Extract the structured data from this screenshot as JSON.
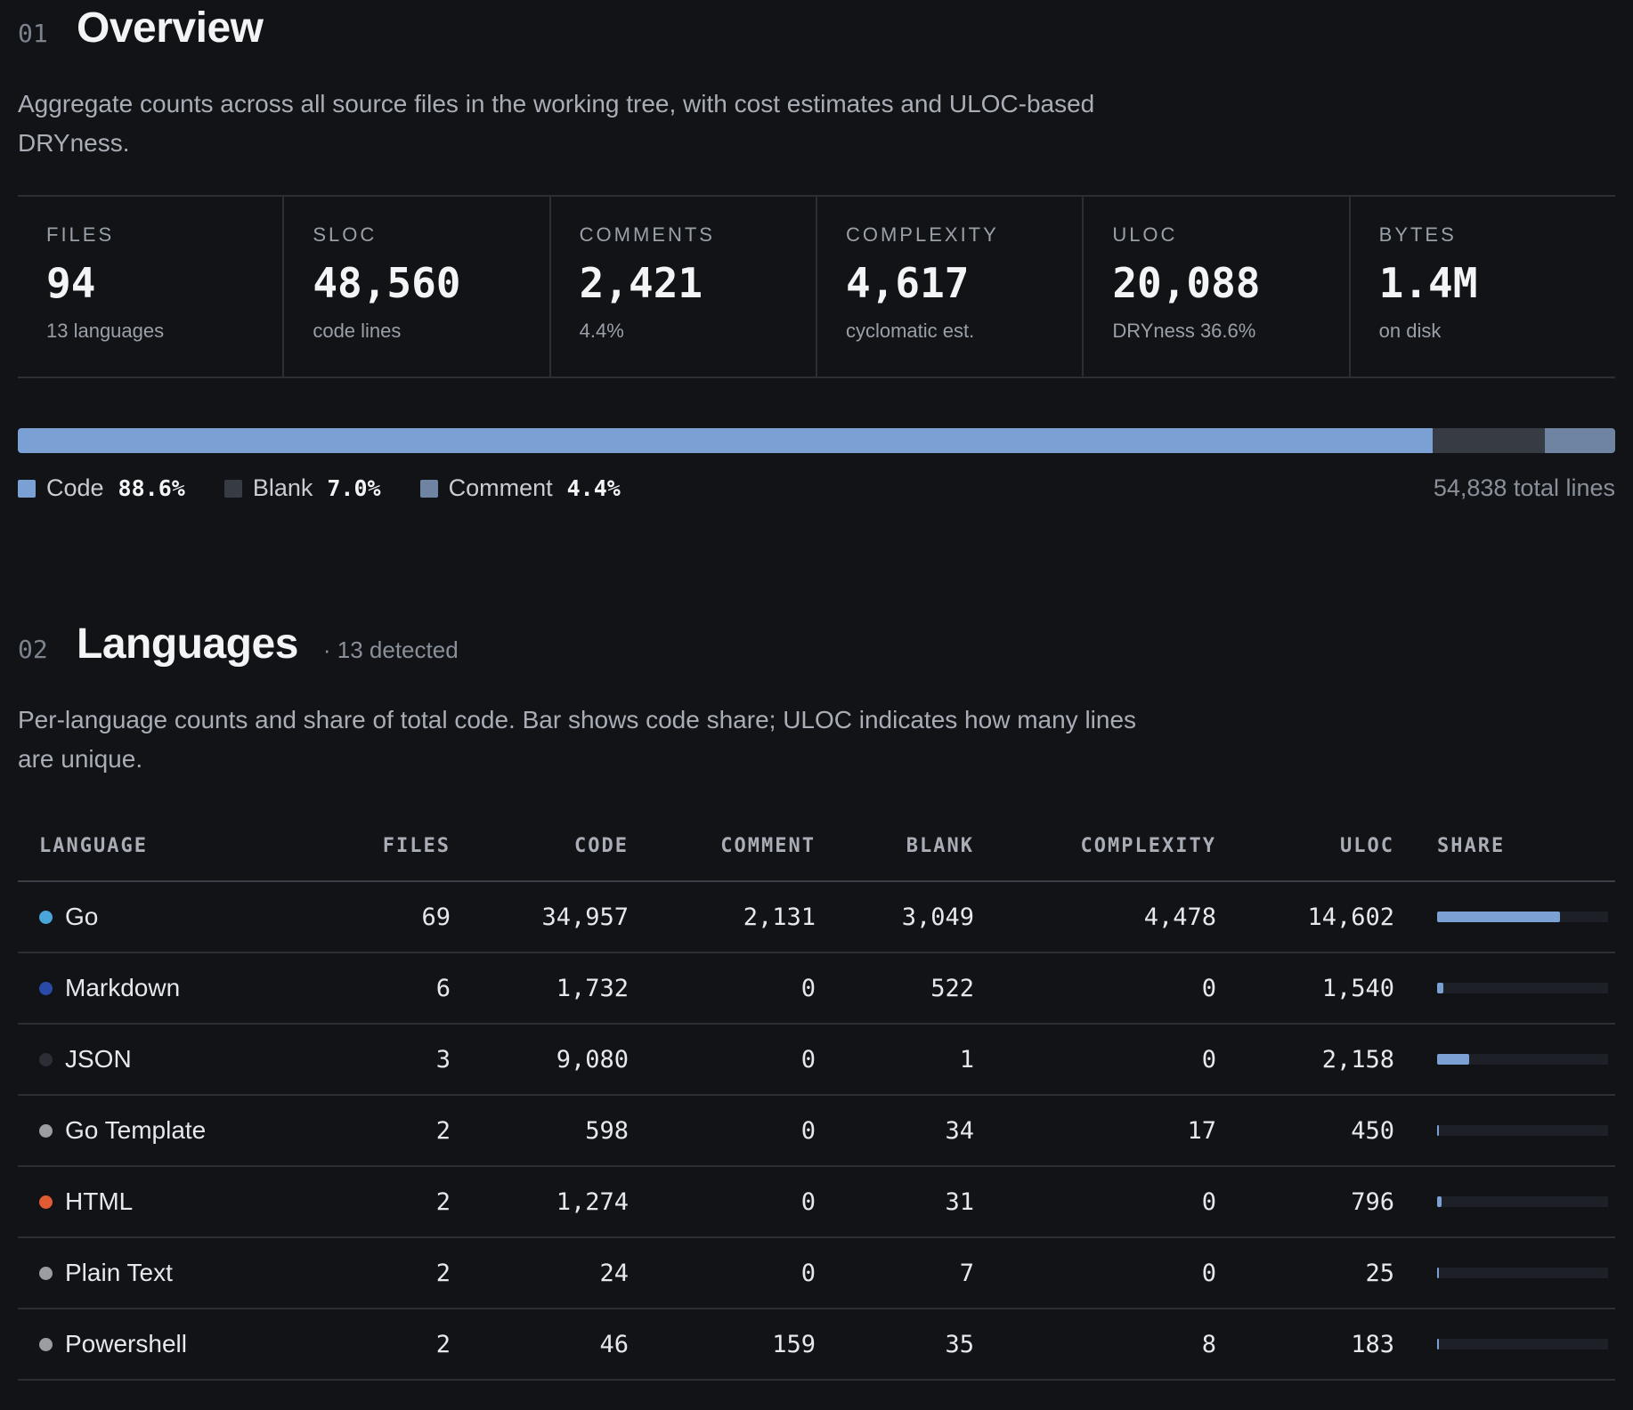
{
  "overview": {
    "num": "01",
    "title": "Overview",
    "desc": "Aggregate counts across all source files in the working tree, with cost estimates and ULOC-based DRYness.",
    "stats": [
      {
        "label": "FILES",
        "value": "94",
        "sub": "13 languages"
      },
      {
        "label": "SLOC",
        "value": "48,560",
        "sub": "code lines"
      },
      {
        "label": "COMMENTS",
        "value": "2,421",
        "sub": "4.4%"
      },
      {
        "label": "COMPLEXITY",
        "value": "4,617",
        "sub": "cyclomatic est."
      },
      {
        "label": "ULOC",
        "value": "20,088",
        "sub": "DRYness 36.6%"
      },
      {
        "label": "BYTES",
        "value": "1.4M",
        "sub": "on disk"
      }
    ],
    "composition": [
      {
        "label": "Code",
        "pct": "88.6%",
        "fraction": 0.886,
        "color": "#7aa0d4"
      },
      {
        "label": "Blank",
        "pct": "7.0%",
        "fraction": 0.07,
        "color": "#363b44"
      },
      {
        "label": "Comment",
        "pct": "4.4%",
        "fraction": 0.044,
        "color": "#6f84a3"
      }
    ],
    "total_lines": "54,838 total lines"
  },
  "languages": {
    "num": "02",
    "title": "Languages",
    "detected": "· 13 detected",
    "desc": "Per-language counts and share of total code. Bar shows code share; ULOC indicates how many lines are unique.",
    "columns": [
      "LANGUAGE",
      "FILES",
      "CODE",
      "COMMENT",
      "BLANK",
      "COMPLEXITY",
      "ULOC",
      "SHARE"
    ],
    "rows": [
      {
        "name": "Go",
        "dot": "#4aa6d8",
        "files": "69",
        "code": "34,957",
        "comment": "2,131",
        "blank": "3,049",
        "complexity": "4,478",
        "uloc": "14,602",
        "share": 0.72
      },
      {
        "name": "Markdown",
        "dot": "#2a4aa8",
        "files": "6",
        "code": "1,732",
        "comment": "0",
        "blank": "522",
        "complexity": "0",
        "uloc": "1,540",
        "share": 0.036
      },
      {
        "name": "JSON",
        "dot": "#2b2f35",
        "files": "3",
        "code": "9,080",
        "comment": "0",
        "blank": "1",
        "complexity": "0",
        "uloc": "2,158",
        "share": 0.187
      },
      {
        "name": "Go Template",
        "dot": "#9a9da2",
        "files": "2",
        "code": "598",
        "comment": "0",
        "blank": "34",
        "complexity": "17",
        "uloc": "450",
        "share": 0.012
      },
      {
        "name": "HTML",
        "dot": "#e05a33",
        "files": "2",
        "code": "1,274",
        "comment": "0",
        "blank": "31",
        "complexity": "0",
        "uloc": "796",
        "share": 0.026
      },
      {
        "name": "Plain Text",
        "dot": "#9a9da2",
        "files": "2",
        "code": "24",
        "comment": "0",
        "blank": "7",
        "complexity": "0",
        "uloc": "25",
        "share": 0.0005
      },
      {
        "name": "Powershell",
        "dot": "#9a9da2",
        "files": "2",
        "code": "46",
        "comment": "159",
        "blank": "35",
        "complexity": "8",
        "uloc": "183",
        "share": 0.001
      }
    ]
  }
}
